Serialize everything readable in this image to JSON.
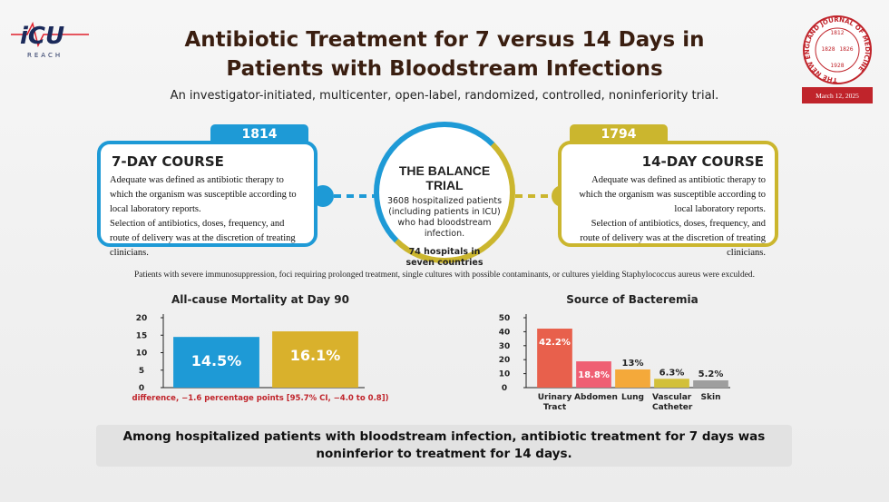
{
  "header": {
    "logo": "iCU",
    "logo_sub": "REACH",
    "title": "Antibiotic Treatment for 7 versus 14 Days in Patients with Bloodstream Infections",
    "subtitle": "An investigator-initiated, multicenter, open-label, randomized, controlled, noninferiority trial.",
    "seal_text": "THE NEW ENGLAND JOURNAL OF MEDICINE",
    "seal_years": [
      "1812",
      "1828",
      "1826",
      "1928"
    ],
    "journal_date": "March 12, 2025"
  },
  "arms": [
    {
      "patients": "1814 patients",
      "title": "7-DAY COURSE",
      "paragraphs": [
        "Adequate was defined as antibiotic therapy to which the organism was susceptible according to local laboratory reports.",
        "Selection of antibiotics, doses, frequency, and route of delivery was at the discretion of treating clinicians."
      ]
    },
    {
      "patients": "1794 patients",
      "title": "14-DAY COURSE",
      "paragraphs": [
        "Adequate was defined as antibiotic therapy to which the organism was susceptible according to local laboratory reports.",
        "Selection of antibiotics, doses, frequency, and route of delivery was at the discretion of treating clinicians."
      ]
    }
  ],
  "trial": {
    "title": "THE BALANCE TRIAL",
    "description": "3608 hospitalized patients (including patients in ICU) who had bloodstream infection.",
    "sites": "74 hospitals in seven countries"
  },
  "exclusion": "Patients with severe immunosuppression, foci requiring prolonged treatment, single cultures with possible contaminants, or cultures yielding Staphylococcus aureus were exculded.",
  "chart_data": [
    {
      "type": "bar",
      "title": "All-cause Mortality at Day 90",
      "values": [
        14.5,
        16.1
      ],
      "value_labels": [
        "14.5%",
        "16.1%"
      ],
      "colors": [
        "#1e9ad6",
        "#d9b12c"
      ],
      "ylim": [
        0,
        20
      ],
      "yticks": [
        0,
        5,
        10,
        15,
        20
      ],
      "annotation": "difference, −1.6 percentage points [95.7% CI, −4.0 to 0.8])"
    },
    {
      "type": "bar",
      "title": "Source of Bacteremia",
      "categories": [
        "Urinary Tract",
        "Abdomen",
        "Lung",
        "Vascular Catheter",
        "Skin"
      ],
      "values": [
        42.2,
        18.8,
        13,
        6.3,
        5.2
      ],
      "value_labels": [
        "42.2%",
        "18.8%",
        "13%",
        "6.3%",
        "5.2%"
      ],
      "colors": [
        "#e8604c",
        "#ef5f73",
        "#f4a93a",
        "#d2c03a",
        "#9e9e9e"
      ],
      "ylim": [
        0,
        50
      ],
      "yticks": [
        0,
        10,
        20,
        30,
        40,
        50
      ]
    }
  ],
  "conclusion": "Among hospitalized patients with bloodstream infection, antibiotic treatment for 7 days was noninferior to treatment for 14 days."
}
